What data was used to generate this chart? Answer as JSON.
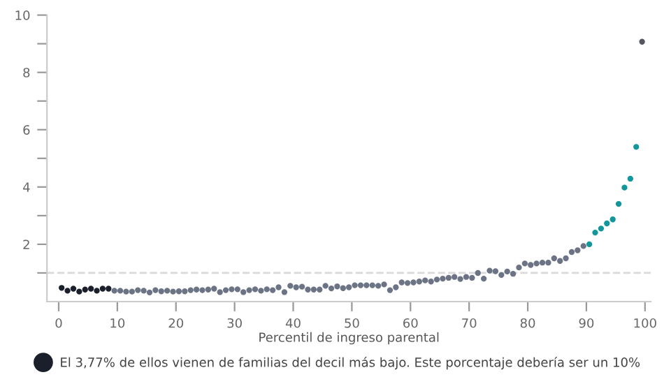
{
  "chart_data": {
    "type": "scatter",
    "xlabel": "Percentil de ingreso parental",
    "series": [
      {
        "name": "El 3,77% de ellos vienen de familias del decil más bajo. Este porcentaje debería ser un 10%",
        "color": "#1a1f2b",
        "x": [
          0.5,
          1.5,
          2.5,
          3.5,
          4.5,
          5.5,
          6.5,
          7.5,
          8.5
        ],
        "values": [
          0.48,
          0.38,
          0.45,
          0.35,
          0.42,
          0.45,
          0.38,
          0.45,
          0.45
        ]
      },
      {
        "color": "#6b7385",
        "x": [
          9.5,
          10.5,
          11.5,
          12.5,
          13.5,
          14.5,
          15.5,
          16.5,
          17.5,
          18.5,
          19.5,
          20.5,
          21.5,
          22.5,
          23.5,
          24.5,
          25.5,
          26.5,
          27.5,
          28.5,
          29.5,
          30.5,
          31.5,
          32.5,
          33.5,
          34.5,
          35.5,
          36.5,
          37.5,
          38.5,
          39.5,
          40.5,
          41.5,
          42.5,
          43.5,
          44.5,
          45.5,
          46.5,
          47.5,
          48.5,
          49.5,
          50.5,
          51.5,
          52.5,
          53.5,
          54.5,
          55.5,
          56.5,
          57.5,
          58.5,
          59.5,
          60.5,
          61.5,
          62.5,
          63.5,
          64.5,
          65.5,
          66.5,
          67.5,
          68.5,
          69.5,
          70.5,
          71.5,
          72.5,
          73.5,
          74.5,
          75.5,
          76.5,
          77.5,
          78.5,
          79.5,
          80.5,
          81.5,
          82.5,
          83.5,
          84.5,
          85.5,
          86.5,
          87.5,
          88.5,
          89.5
        ],
        "values": [
          0.38,
          0.38,
          0.35,
          0.35,
          0.4,
          0.38,
          0.32,
          0.4,
          0.36,
          0.38,
          0.35,
          0.36,
          0.36,
          0.4,
          0.42,
          0.4,
          0.42,
          0.45,
          0.33,
          0.4,
          0.43,
          0.43,
          0.33,
          0.4,
          0.43,
          0.38,
          0.43,
          0.4,
          0.5,
          0.33,
          0.55,
          0.5,
          0.52,
          0.42,
          0.42,
          0.42,
          0.55,
          0.46,
          0.53,
          0.47,
          0.5,
          0.57,
          0.57,
          0.57,
          0.57,
          0.55,
          0.6,
          0.4,
          0.5,
          0.67,
          0.65,
          0.67,
          0.7,
          0.74,
          0.7,
          0.77,
          0.8,
          0.83,
          0.86,
          0.79,
          0.86,
          0.83,
          1.0,
          0.8,
          1.08,
          1.06,
          0.93,
          1.05,
          0.97,
          1.19,
          1.33,
          1.28,
          1.33,
          1.36,
          1.36,
          1.51,
          1.42,
          1.51,
          1.73,
          1.79,
          1.94
        ]
      },
      {
        "color": "#14979c",
        "x": [
          90.5,
          91.5,
          92.5,
          93.5,
          94.5,
          95.5,
          96.5,
          97.5,
          98.5
        ],
        "values": [
          2.0,
          2.41,
          2.55,
          2.73,
          2.87,
          3.41,
          3.98,
          4.29,
          5.4
        ]
      },
      {
        "color": "#55595f",
        "x": [
          99.5
        ],
        "values": [
          9.07
        ]
      }
    ],
    "xlim": [
      -2,
      101
    ],
    "xticks": [
      0,
      10,
      20,
      30,
      40,
      50,
      60,
      70,
      80,
      90,
      100
    ],
    "ylim": [
      0,
      10
    ],
    "yticks": [
      {
        "value": 1,
        "label": null
      },
      2,
      {
        "value": 3,
        "label": null
      },
      4,
      {
        "value": 5,
        "label": null
      },
      6,
      {
        "value": 7,
        "label": null
      },
      8,
      {
        "value": 9,
        "label": null
      },
      10
    ],
    "ref_lines": [
      {
        "axis": "y",
        "value": 1,
        "color": "#d9d9d9",
        "line_style": "dashed"
      }
    ],
    "marker": "circle",
    "grid": false,
    "legend": "bottom"
  }
}
